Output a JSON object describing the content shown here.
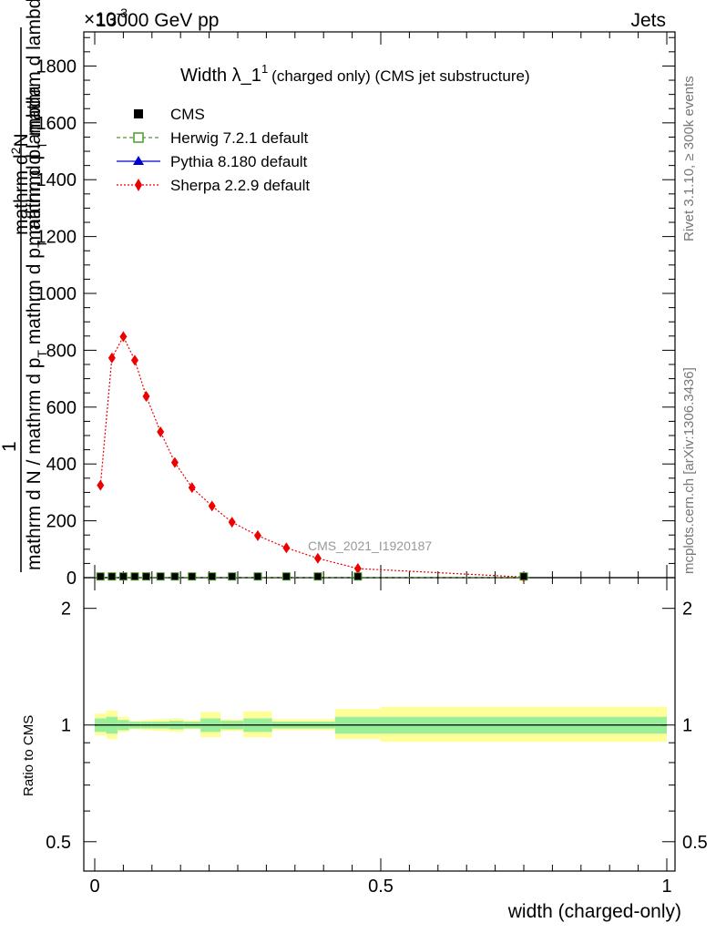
{
  "header": {
    "left_label": "13000 GeV pp",
    "right_label": "Jets",
    "exponent_label": "×10",
    "exponent_power": "-3"
  },
  "main_title": {
    "text": "Width λ_1",
    "sup": "1",
    "note": "(charged only) (CMS jet substructure)"
  },
  "side_labels": {
    "rivet": "Rivet 3.1.10, ≥ 300k events",
    "mcplots": "mcplots.cern.ch [arXiv:1306.3436]",
    "analysis": "CMS_2021_I1920187"
  },
  "y_label_top": {
    "num_main": "mathrm d",
    "num_sup": "2",
    "num_tail": "N",
    "den_a": "mathrm d p",
    "den_a_sub": "T",
    "den_b": " mathrm d lambda",
    "left_one": "1",
    "left_main": "mathrm d N / mathrm d p",
    "left_sub": "T",
    "left_tail": " mathrm d p",
    "left_sub2": "T",
    "left_tail2": " mathrm d lambda"
  },
  "y_label_ratio": "Ratio to CMS",
  "x_label": "width (charged-only)",
  "legend": [
    {
      "name": "CMS",
      "color": "#000000",
      "marker": "square"
    },
    {
      "name": "Herwig 7.2.1 default",
      "color": "#4c9a2a",
      "marker": "open-square"
    },
    {
      "name": "Pythia 8.180 default",
      "color": "#0000cc",
      "marker": "triangle"
    },
    {
      "name": "Sherpa 2.2.9 default",
      "color": "#ee0000",
      "marker": "diamond"
    }
  ],
  "chart_data": {
    "type": "line",
    "x_range": [
      0,
      1
    ],
    "top_panel": {
      "y_range": [
        0,
        1920
      ],
      "y_ticks": [
        0,
        200,
        400,
        600,
        800,
        1000,
        1200,
        1400,
        1600,
        1800
      ],
      "y_tick_labels": [
        "0",
        "200",
        "400",
        "600",
        "800",
        "1000",
        "1200",
        "1400",
        "1600",
        "1800"
      ],
      "series": [
        {
          "name": "Sherpa 2.2.9 default",
          "x": [
            0.01,
            0.03,
            0.05,
            0.07,
            0.09,
            0.115,
            0.14,
            0.17,
            0.205,
            0.24,
            0.285,
            0.335,
            0.39,
            0.46,
            0.75
          ],
          "y": [
            325,
            773,
            848,
            765,
            638,
            513,
            405,
            317,
            252,
            195,
            148,
            105,
            68,
            32,
            2
          ]
        },
        {
          "name": "CMS",
          "x": [
            0.01,
            0.03,
            0.05,
            0.07,
            0.09,
            0.115,
            0.14,
            0.17,
            0.205,
            0.24,
            0.285,
            0.335,
            0.39,
            0.46,
            0.75
          ],
          "y": [
            1,
            1,
            1,
            1,
            1,
            1,
            1,
            1,
            1,
            1,
            1,
            1,
            1,
            1,
            1
          ]
        }
      ]
    },
    "ratio_panel": {
      "y_range": [
        0.42,
        2.4
      ],
      "y_scale": "log",
      "y_tick_labels": [
        "0.5",
        "1",
        "2"
      ],
      "y_ticks": [
        0.5,
        1,
        2
      ],
      "x_ticks": [
        0,
        0.5,
        1
      ],
      "x_tick_labels": [
        "0",
        "0.5",
        "1"
      ],
      "bands": [
        {
          "x0": 0.0,
          "x1": 0.02,
          "inner": [
            0.96,
            1.04
          ],
          "outer": [
            0.94,
            1.07
          ]
        },
        {
          "x0": 0.02,
          "x1": 0.04,
          "inner": [
            0.95,
            1.05
          ],
          "outer": [
            0.92,
            1.09
          ]
        },
        {
          "x0": 0.04,
          "x1": 0.06,
          "inner": [
            0.97,
            1.03
          ],
          "outer": [
            0.96,
            1.05
          ]
        },
        {
          "x0": 0.06,
          "x1": 0.08,
          "inner": [
            0.98,
            1.02
          ],
          "outer": [
            0.975,
            1.025
          ]
        },
        {
          "x0": 0.08,
          "x1": 0.1,
          "inner": [
            0.98,
            1.02
          ],
          "outer": [
            0.97,
            1.03
          ]
        },
        {
          "x0": 0.1,
          "x1": 0.13,
          "inner": [
            0.98,
            1.02
          ],
          "outer": [
            0.965,
            1.035
          ]
        },
        {
          "x0": 0.13,
          "x1": 0.155,
          "inner": [
            0.975,
            1.025
          ],
          "outer": [
            0.96,
            1.04
          ]
        },
        {
          "x0": 0.155,
          "x1": 0.185,
          "inner": [
            0.98,
            1.02
          ],
          "outer": [
            0.975,
            1.03
          ]
        },
        {
          "x0": 0.185,
          "x1": 0.22,
          "inner": [
            0.96,
            1.04
          ],
          "outer": [
            0.93,
            1.08
          ]
        },
        {
          "x0": 0.22,
          "x1": 0.26,
          "inner": [
            0.975,
            1.025
          ],
          "outer": [
            0.965,
            1.035
          ]
        },
        {
          "x0": 0.26,
          "x1": 0.31,
          "inner": [
            0.96,
            1.04
          ],
          "outer": [
            0.93,
            1.085
          ]
        },
        {
          "x0": 0.31,
          "x1": 0.36,
          "inner": [
            0.98,
            1.02
          ],
          "outer": [
            0.97,
            1.035
          ]
        },
        {
          "x0": 0.36,
          "x1": 0.42,
          "inner": [
            0.98,
            1.02
          ],
          "outer": [
            0.97,
            1.035
          ]
        },
        {
          "x0": 0.42,
          "x1": 0.5,
          "inner": [
            0.95,
            1.05
          ],
          "outer": [
            0.92,
            1.1
          ]
        },
        {
          "x0": 0.5,
          "x1": 1.0,
          "inner": [
            0.95,
            1.05
          ],
          "outer": [
            0.905,
            1.115
          ]
        }
      ],
      "reference": 1
    }
  }
}
